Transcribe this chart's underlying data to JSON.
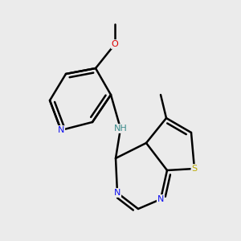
{
  "bg": "#ebebeb",
  "bc": "#000000",
  "lw": 1.8,
  "atom_colors": {
    "N": "#1010ee",
    "O": "#dd0000",
    "S": "#bbaa00",
    "NH": "#3a8a8a",
    "C": "#000000"
  },
  "fs": 8.5,
  "dpi": 100,
  "figw": 3.0,
  "figh": 3.0
}
